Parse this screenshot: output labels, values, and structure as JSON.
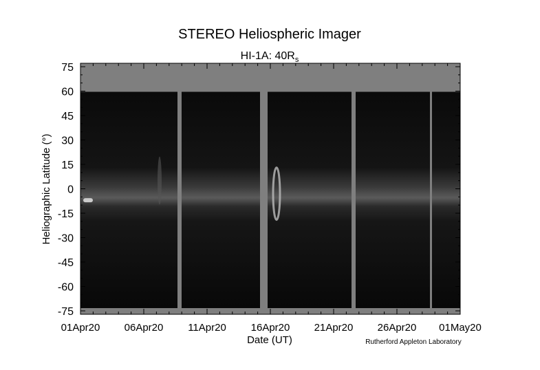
{
  "chart_data": {
    "type": "image",
    "title": "STEREO Heliospheric Imager",
    "subtitle": "HI-1A: 40R",
    "subtitle_subscript": "s",
    "ylabel": "Heliographic Latitude (°)",
    "xlabel": "Date (UT)",
    "credit": "Rutherford Appleton Laboratory",
    "ylim": [
      -75,
      75
    ],
    "yticks": [
      -75,
      -60,
      -45,
      -30,
      -15,
      0,
      15,
      30,
      45,
      60,
      75
    ],
    "xticks": [
      "01Apr20",
      "06Apr20",
      "11Apr20",
      "16Apr20",
      "21Apr20",
      "26Apr20",
      "01May20"
    ]
  }
}
